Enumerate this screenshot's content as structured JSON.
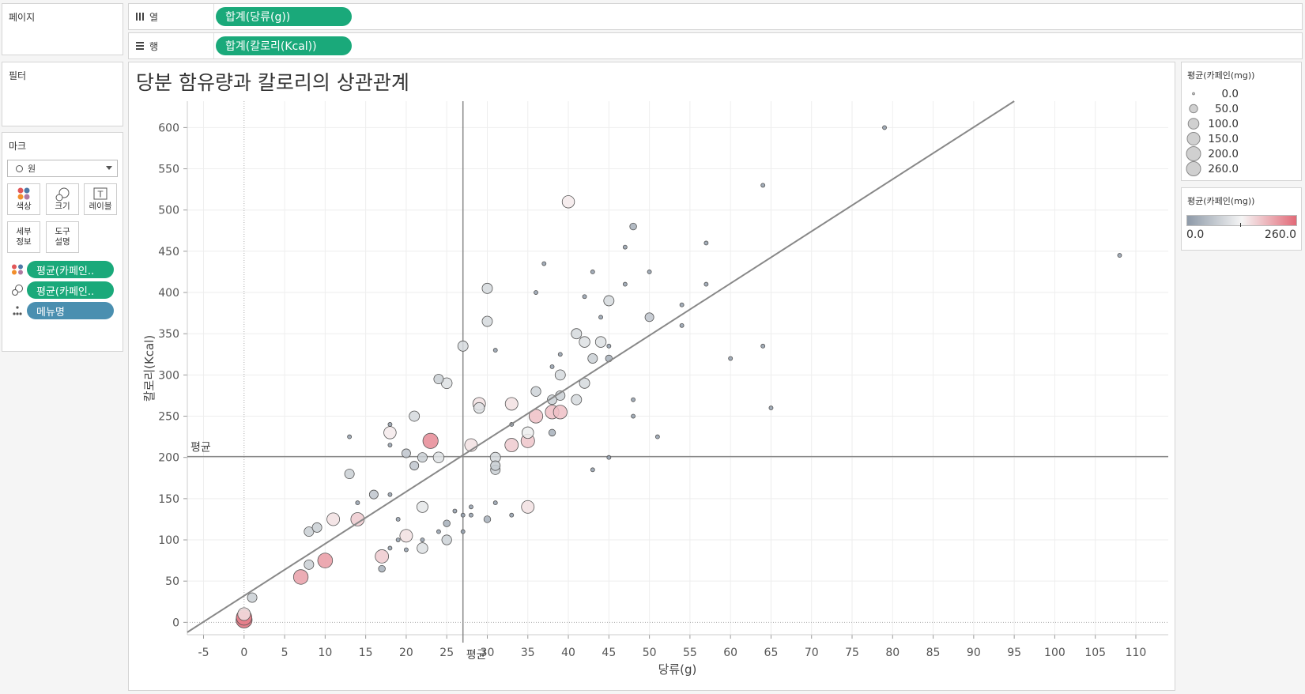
{
  "panes": {
    "pages_label": "페이지",
    "filters_label": "필터",
    "marks_label": "마크"
  },
  "shelves": {
    "columns": {
      "label": "열",
      "pill": "합계(당류(g))"
    },
    "rows": {
      "label": "행",
      "pill": "합계(칼로리(Kcal))"
    }
  },
  "marks": {
    "type": "원",
    "buttons": {
      "color": "색상",
      "size": "크기",
      "label": "레이블",
      "detail": "세부\n정보",
      "tooltip": "도구\n설명"
    },
    "encodings": [
      {
        "icon": "color-icon",
        "pill": "평균(카페인.."
      },
      {
        "icon": "size-icon",
        "pill": "평균(카페인.."
      },
      {
        "icon": "detail-icon",
        "pill": "메뉴명"
      }
    ]
  },
  "legends": {
    "size": {
      "title": "평균(카페인(mg))",
      "items": [
        "0.0",
        "50.0",
        "100.0",
        "150.0",
        "200.0",
        "260.0"
      ]
    },
    "color": {
      "title": "평균(카페인(mg))",
      "min": "0.0",
      "max": "260.0",
      "gradient": [
        "#8e9aa8",
        "#f5f5f5",
        "#e26a78"
      ]
    }
  },
  "chart_data": {
    "type": "scatter",
    "title": "당분 함유량과 칼로리의 상관관계",
    "xlabel": "당류(g)",
    "ylabel": "칼로리(Kcal)",
    "xlim": [
      -7,
      114
    ],
    "ylim": [
      -15,
      632
    ],
    "xticks": [
      -5,
      0,
      5,
      10,
      15,
      20,
      25,
      30,
      35,
      40,
      45,
      50,
      55,
      60,
      65,
      70,
      75,
      80,
      85,
      90,
      95,
      100,
      105,
      110
    ],
    "yticks": [
      0,
      50,
      100,
      150,
      200,
      250,
      300,
      350,
      400,
      450,
      500,
      550,
      600
    ],
    "grid": true,
    "reference_lines": {
      "x_avg": 27,
      "y_avg": 201,
      "x_label": "평균",
      "y_label": "평균"
    },
    "trend_line": {
      "x0": -7,
      "y0": -12,
      "x1": 95,
      "y1": 632
    },
    "size_encoding": "평균(카페인(mg))",
    "color_encoding": "평균(카페인(mg))",
    "points": [
      {
        "x": 0,
        "y": 3,
        "c": 260
      },
      {
        "x": 0,
        "y": 6,
        "c": 240
      },
      {
        "x": 0,
        "y": 10,
        "c": 150
      },
      {
        "x": 1,
        "y": 30,
        "c": 75
      },
      {
        "x": 7,
        "y": 55,
        "c": 210
      },
      {
        "x": 8,
        "y": 70,
        "c": 75
      },
      {
        "x": 8,
        "y": 110,
        "c": 75
      },
      {
        "x": 9,
        "y": 115,
        "c": 75
      },
      {
        "x": 10,
        "y": 75,
        "c": 215
      },
      {
        "x": 11,
        "y": 125,
        "c": 150
      },
      {
        "x": 13,
        "y": 180,
        "c": 75
      },
      {
        "x": 13,
        "y": 225,
        "c": 5
      },
      {
        "x": 14,
        "y": 125,
        "c": 170
      },
      {
        "x": 14,
        "y": 145,
        "c": 5
      },
      {
        "x": 16,
        "y": 155,
        "c": 60
      },
      {
        "x": 17,
        "y": 65,
        "c": 30
      },
      {
        "x": 17,
        "y": 80,
        "c": 170
      },
      {
        "x": 18,
        "y": 90,
        "c": 5
      },
      {
        "x": 18,
        "y": 155,
        "c": 5
      },
      {
        "x": 18,
        "y": 215,
        "c": 5
      },
      {
        "x": 18,
        "y": 230,
        "c": 140
      },
      {
        "x": 18,
        "y": 240,
        "c": 5
      },
      {
        "x": 19,
        "y": 100,
        "c": 5
      },
      {
        "x": 19,
        "y": 125,
        "c": 5
      },
      {
        "x": 20,
        "y": 88,
        "c": 5
      },
      {
        "x": 20,
        "y": 105,
        "c": 150
      },
      {
        "x": 20,
        "y": 205,
        "c": 60
      },
      {
        "x": 21,
        "y": 190,
        "c": 60
      },
      {
        "x": 21,
        "y": 250,
        "c": 90
      },
      {
        "x": 22,
        "y": 90,
        "c": 100
      },
      {
        "x": 22,
        "y": 100,
        "c": 5
      },
      {
        "x": 22,
        "y": 140,
        "c": 110
      },
      {
        "x": 22,
        "y": 200,
        "c": 75
      },
      {
        "x": 23,
        "y": 220,
        "c": 230
      },
      {
        "x": 24,
        "y": 110,
        "c": 5
      },
      {
        "x": 24,
        "y": 200,
        "c": 100
      },
      {
        "x": 24,
        "y": 295,
        "c": 75
      },
      {
        "x": 25,
        "y": 100,
        "c": 80
      },
      {
        "x": 25,
        "y": 120,
        "c": 30
      },
      {
        "x": 25,
        "y": 290,
        "c": 100
      },
      {
        "x": 26,
        "y": 135,
        "c": 5
      },
      {
        "x": 27,
        "y": 110,
        "c": 5
      },
      {
        "x": 27,
        "y": 130,
        "c": 5
      },
      {
        "x": 27,
        "y": 335,
        "c": 90
      },
      {
        "x": 28,
        "y": 130,
        "c": 5
      },
      {
        "x": 28,
        "y": 140,
        "c": 5
      },
      {
        "x": 28,
        "y": 215,
        "c": 150
      },
      {
        "x": 29,
        "y": 260,
        "c": 100
      },
      {
        "x": 29,
        "y": 265,
        "c": 150
      },
      {
        "x": 30,
        "y": 125,
        "c": 30
      },
      {
        "x": 30,
        "y": 365,
        "c": 90
      },
      {
        "x": 30,
        "y": 405,
        "c": 90
      },
      {
        "x": 31,
        "y": 145,
        "c": 5
      },
      {
        "x": 31,
        "y": 185,
        "c": 75
      },
      {
        "x": 31,
        "y": 190,
        "c": 75
      },
      {
        "x": 31,
        "y": 200,
        "c": 90
      },
      {
        "x": 31,
        "y": 330,
        "c": 5
      },
      {
        "x": 33,
        "y": 130,
        "c": 5
      },
      {
        "x": 33,
        "y": 215,
        "c": 170
      },
      {
        "x": 33,
        "y": 240,
        "c": 5
      },
      {
        "x": 33,
        "y": 265,
        "c": 150
      },
      {
        "x": 35,
        "y": 140,
        "c": 150
      },
      {
        "x": 35,
        "y": 220,
        "c": 175
      },
      {
        "x": 35,
        "y": 230,
        "c": 120
      },
      {
        "x": 36,
        "y": 250,
        "c": 180
      },
      {
        "x": 36,
        "y": 280,
        "c": 80
      },
      {
        "x": 36,
        "y": 400,
        "c": 5
      },
      {
        "x": 37,
        "y": 435,
        "c": 5
      },
      {
        "x": 38,
        "y": 230,
        "c": 30
      },
      {
        "x": 38,
        "y": 255,
        "c": 180
      },
      {
        "x": 38,
        "y": 270,
        "c": 75
      },
      {
        "x": 38,
        "y": 310,
        "c": 5
      },
      {
        "x": 39,
        "y": 255,
        "c": 180
      },
      {
        "x": 39,
        "y": 275,
        "c": 75
      },
      {
        "x": 39,
        "y": 300,
        "c": 90
      },
      {
        "x": 39,
        "y": 325,
        "c": 5
      },
      {
        "x": 40,
        "y": 510,
        "c": 140
      },
      {
        "x": 41,
        "y": 270,
        "c": 90
      },
      {
        "x": 41,
        "y": 350,
        "c": 90
      },
      {
        "x": 42,
        "y": 290,
        "c": 90
      },
      {
        "x": 42,
        "y": 340,
        "c": 100
      },
      {
        "x": 42,
        "y": 395,
        "c": 5
      },
      {
        "x": 43,
        "y": 185,
        "c": 5
      },
      {
        "x": 43,
        "y": 320,
        "c": 75
      },
      {
        "x": 43,
        "y": 425,
        "c": 5
      },
      {
        "x": 44,
        "y": 340,
        "c": 100
      },
      {
        "x": 44,
        "y": 370,
        "c": 5
      },
      {
        "x": 45,
        "y": 200,
        "c": 5
      },
      {
        "x": 45,
        "y": 320,
        "c": 30
      },
      {
        "x": 45,
        "y": 335,
        "c": 5
      },
      {
        "x": 45,
        "y": 390,
        "c": 90
      },
      {
        "x": 47,
        "y": 410,
        "c": 5
      },
      {
        "x": 47,
        "y": 455,
        "c": 5
      },
      {
        "x": 48,
        "y": 250,
        "c": 5
      },
      {
        "x": 48,
        "y": 270,
        "c": 5
      },
      {
        "x": 48,
        "y": 480,
        "c": 30
      },
      {
        "x": 50,
        "y": 370,
        "c": 60
      },
      {
        "x": 50,
        "y": 425,
        "c": 5
      },
      {
        "x": 51,
        "y": 225,
        "c": 5
      },
      {
        "x": 54,
        "y": 360,
        "c": 5
      },
      {
        "x": 54,
        "y": 385,
        "c": 5
      },
      {
        "x": 57,
        "y": 410,
        "c": 5
      },
      {
        "x": 57,
        "y": 460,
        "c": 5
      },
      {
        "x": 60,
        "y": 320,
        "c": 5
      },
      {
        "x": 64,
        "y": 335,
        "c": 5
      },
      {
        "x": 64,
        "y": 530,
        "c": 5
      },
      {
        "x": 65,
        "y": 260,
        "c": 5
      },
      {
        "x": 79,
        "y": 600,
        "c": 5
      },
      {
        "x": 108,
        "y": 445,
        "c": 5
      }
    ]
  }
}
